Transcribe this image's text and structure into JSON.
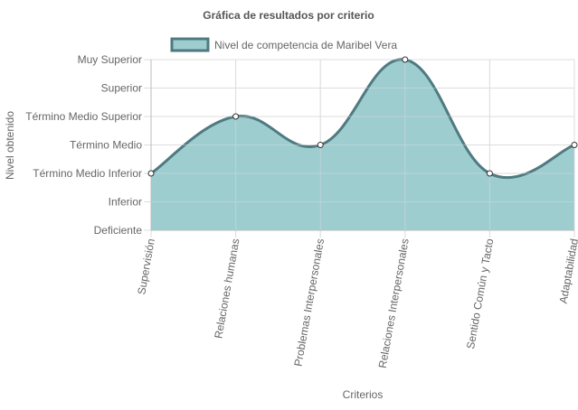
{
  "chart_data": {
    "type": "area",
    "title": "Gráfica de resultados por criterio",
    "xlabel": "Criterios",
    "ylabel": "Nivel obtenido",
    "categories": [
      "Supervisión",
      "Relaciones humanas",
      "Problemas Interpersonales",
      "Relaciones Interpersonales",
      "Sentido Común y Tacto",
      "Adaptabilidad"
    ],
    "y_levels": [
      "Deficiente",
      "Inferior",
      "Término Medio Inferior",
      "Término Medio",
      "Término Medio Superior",
      "Superior",
      "Muy Superior"
    ],
    "ylim": [
      0,
      6
    ],
    "series": [
      {
        "name": "Nivel de competencia de Maribel Vera",
        "values": [
          2,
          4,
          3,
          6,
          2,
          3
        ]
      }
    ],
    "legend_position": "top",
    "grid": true,
    "colors": {
      "fill": "#9ecdd0",
      "stroke": "#4e7a80",
      "point_fill": "#ffffff",
      "grid": "#dddddd",
      "text": "#666666",
      "title": "#555555"
    }
  }
}
